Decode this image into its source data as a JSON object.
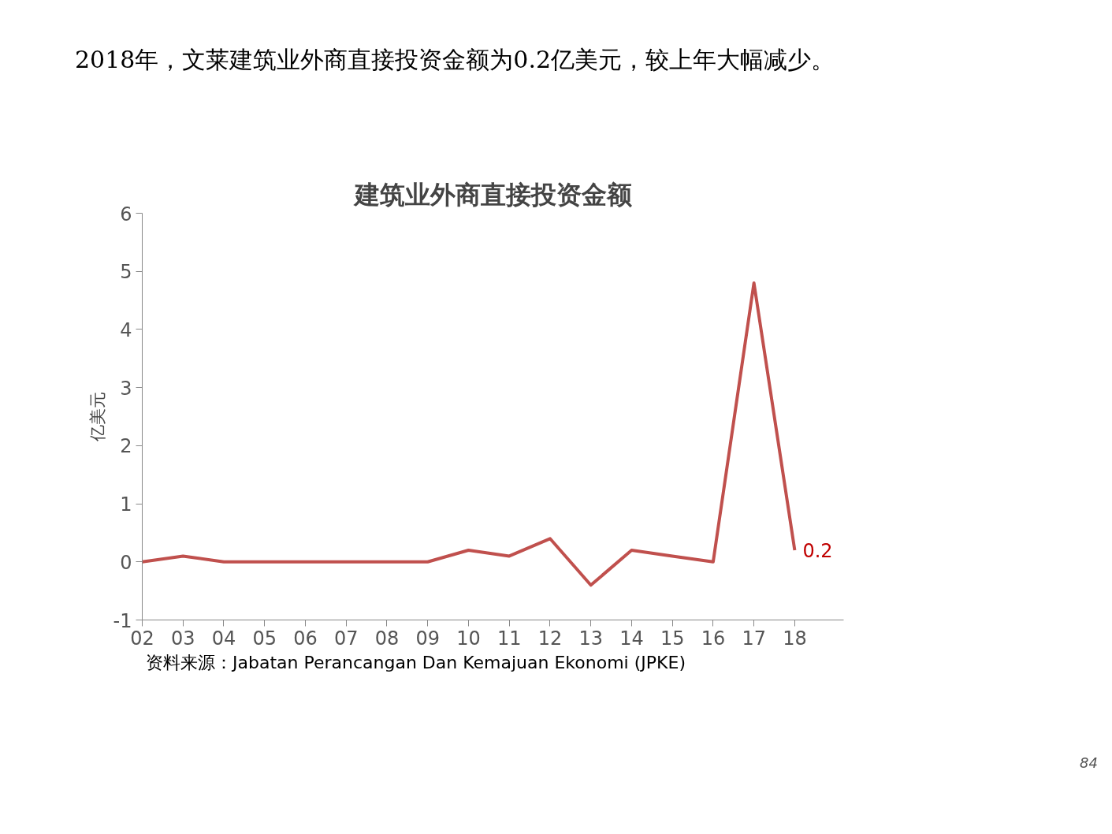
{
  "chart_data": {
    "type": "line",
    "title": "2018年，文莱建筑业外商直接投资金额为0.2亿美元，较上年大幅减少。",
    "subtitle": "建筑业外商直接投资金额",
    "ylabel": "亿美元",
    "categories": [
      "02",
      "03",
      "04",
      "05",
      "06",
      "07",
      "08",
      "09",
      "10",
      "11",
      "12",
      "13",
      "14",
      "15",
      "16",
      "17",
      "18"
    ],
    "series": [
      {
        "color": "#c0504d",
        "values": [
          0,
          0.1,
          0,
          0,
          0,
          0,
          0,
          0,
          0.2,
          0.1,
          0.4,
          -0.4,
          0.2,
          0.1,
          0,
          4.8,
          0.2
        ],
        "value_labels": [
          null,
          null,
          null,
          null,
          null,
          null,
          null,
          null,
          null,
          null,
          null,
          null,
          null,
          null,
          null,
          null,
          "0.2"
        ]
      }
    ],
    "ylim": [
      -1,
      6
    ],
    "yticks": [
      -1,
      0,
      1,
      2,
      3,
      4,
      5,
      6
    ],
    "grid": false,
    "marker": "none",
    "line_style": "solid",
    "annotations": [
      "资料来源：Jabatan Perancangan Dan Kemajuan Ekonomi (JPKE)",
      "84"
    ]
  }
}
